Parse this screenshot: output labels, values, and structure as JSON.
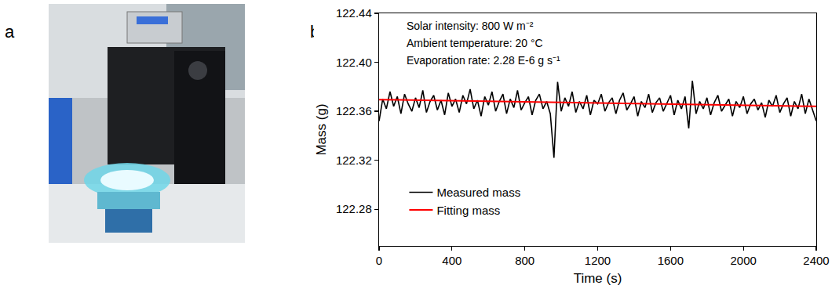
{
  "photo": {
    "panel": "a"
  },
  "chart_data": {
    "panel": "b",
    "type": "line",
    "x_label": "Time (s)",
    "y_label": "Mass (g)",
    "annotations": [
      "Solar intensity: 800 W m⁻²",
      "Ambient temperature: 20 °C",
      "Evaporation rate: 2.28 E-6 g s⁻¹"
    ],
    "xlim": [
      0,
      2400
    ],
    "xticks": [
      0,
      400,
      800,
      1200,
      1600,
      2000,
      2400
    ],
    "ylim": [
      122.25,
      122.44
    ],
    "yticks": [
      {
        "value": 122.28,
        "label": "122.28"
      },
      {
        "value": 122.32,
        "label": "122.32"
      },
      {
        "value": 122.36,
        "label": "122.36"
      },
      {
        "value": 122.4,
        "label": "122.40"
      },
      {
        "value": 122.44,
        "label": "122.44"
      }
    ],
    "grid": false,
    "legend": "lower left",
    "series": [
      {
        "name": "Measured mass",
        "color": "#000000",
        "line_style": "solid",
        "x": [
          0,
          20,
          40,
          60,
          80,
          100,
          120,
          140,
          160,
          180,
          200,
          220,
          240,
          260,
          280,
          300,
          320,
          340,
          360,
          380,
          400,
          420,
          440,
          460,
          480,
          500,
          520,
          540,
          560,
          580,
          600,
          620,
          640,
          660,
          680,
          700,
          720,
          740,
          760,
          780,
          800,
          820,
          840,
          860,
          880,
          900,
          920,
          940,
          960,
          980,
          1000,
          1020,
          1040,
          1060,
          1080,
          1100,
          1120,
          1140,
          1160,
          1180,
          1200,
          1220,
          1240,
          1260,
          1280,
          1300,
          1320,
          1340,
          1360,
          1380,
          1400,
          1420,
          1440,
          1460,
          1480,
          1500,
          1520,
          1540,
          1560,
          1580,
          1600,
          1620,
          1640,
          1660,
          1680,
          1700,
          1720,
          1740,
          1760,
          1780,
          1800,
          1820,
          1840,
          1860,
          1880,
          1900,
          1920,
          1940,
          1960,
          1980,
          2000,
          2020,
          2040,
          2060,
          2080,
          2100,
          2120,
          2140,
          2160,
          2180,
          2200,
          2220,
          2240,
          2260,
          2280,
          2300,
          2320,
          2340,
          2360,
          2380,
          2400
        ],
        "values": [
          122.352,
          122.37,
          122.362,
          122.376,
          122.364,
          122.372,
          122.358,
          122.374,
          122.366,
          122.36,
          122.371,
          122.363,
          122.377,
          122.359,
          122.368,
          122.373,
          122.361,
          122.369,
          122.357,
          122.375,
          122.364,
          122.37,
          122.359,
          122.373,
          122.366,
          122.378,
          122.362,
          122.369,
          122.356,
          122.372,
          122.365,
          122.376,
          122.36,
          122.368,
          122.374,
          122.358,
          122.37,
          122.363,
          122.377,
          122.361,
          122.367,
          122.372,
          122.357,
          122.369,
          122.374,
          122.362,
          122.368,
          122.358,
          122.322,
          122.384,
          122.36,
          122.371,
          122.364,
          122.376,
          122.359,
          122.368,
          122.362,
          122.373,
          122.357,
          122.369,
          122.366,
          122.374,
          122.36,
          122.367,
          122.371,
          122.358,
          122.369,
          122.375,
          122.361,
          122.366,
          122.372,
          122.356,
          122.368,
          122.363,
          122.374,
          122.359,
          122.367,
          122.371,
          122.36,
          122.366,
          122.373,
          122.357,
          122.369,
          122.362,
          122.372,
          122.346,
          122.385,
          122.358,
          122.368,
          122.362,
          122.371,
          122.357,
          122.367,
          122.373,
          122.36,
          122.365,
          122.37,
          122.356,
          122.368,
          122.363,
          122.372,
          122.358,
          122.366,
          122.37,
          122.361,
          122.367,
          122.355,
          122.369,
          122.364,
          122.373,
          122.359,
          122.366,
          122.371,
          122.356,
          122.368,
          122.362,
          122.374,
          122.358,
          122.37,
          122.361,
          122.352
        ]
      },
      {
        "name": "Fitting mass",
        "color": "#ff0000",
        "line_style": "solid",
        "x": [
          0,
          2400
        ],
        "values": [
          122.3695,
          122.364
        ]
      }
    ]
  }
}
